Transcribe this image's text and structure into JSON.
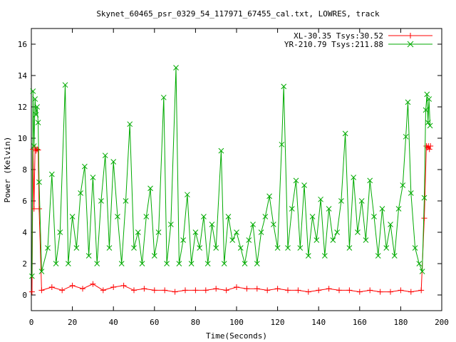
{
  "chart_data": {
    "type": "line",
    "title": "Skynet_60465_psr_0329_54_117971_67455_cal.txt, LOWRES, track",
    "xlabel": "Time(Seconds)",
    "ylabel": "Power (Kelvin)",
    "xlim": [
      0,
      200
    ],
    "ylim": [
      -1,
      17
    ],
    "x_ticks": [
      0,
      20,
      40,
      60,
      80,
      100,
      120,
      140,
      160,
      180,
      200
    ],
    "y_ticks": [
      0,
      2,
      4,
      6,
      8,
      10,
      12,
      14,
      16
    ],
    "grid": false,
    "legend_position": "top-right",
    "series": [
      {
        "name": "XL-30.35 Tsys:30.52",
        "color": "#ff0000",
        "marker": "+",
        "points": [
          [
            0.3,
            0.2
          ],
          [
            0.8,
            9.3
          ],
          [
            1.3,
            5.5
          ],
          [
            1.8,
            9.4
          ],
          [
            2.3,
            9.2
          ],
          [
            2.8,
            9.3
          ],
          [
            3.3,
            9.25
          ],
          [
            3.8,
            5.5
          ],
          [
            5,
            0.3
          ],
          [
            10,
            0.5
          ],
          [
            15,
            0.3
          ],
          [
            20,
            0.6
          ],
          [
            25,
            0.4
          ],
          [
            30,
            0.7
          ],
          [
            35,
            0.3
          ],
          [
            40,
            0.5
          ],
          [
            45,
            0.6
          ],
          [
            50,
            0.3
          ],
          [
            55,
            0.4
          ],
          [
            60,
            0.3
          ],
          [
            65,
            0.3
          ],
          [
            70,
            0.2
          ],
          [
            75,
            0.3
          ],
          [
            80,
            0.3
          ],
          [
            85,
            0.3
          ],
          [
            90,
            0.4
          ],
          [
            95,
            0.3
          ],
          [
            100,
            0.5
          ],
          [
            105,
            0.4
          ],
          [
            110,
            0.4
          ],
          [
            115,
            0.3
          ],
          [
            120,
            0.4
          ],
          [
            125,
            0.3
          ],
          [
            130,
            0.3
          ],
          [
            135,
            0.2
          ],
          [
            140,
            0.3
          ],
          [
            145,
            0.4
          ],
          [
            150,
            0.3
          ],
          [
            155,
            0.3
          ],
          [
            160,
            0.2
          ],
          [
            165,
            0.3
          ],
          [
            170,
            0.2
          ],
          [
            175,
            0.2
          ],
          [
            180,
            0.3
          ],
          [
            185,
            0.2
          ],
          [
            190,
            0.3
          ],
          [
            191.5,
            4.9
          ],
          [
            192.5,
            9.5
          ],
          [
            193.0,
            9.4
          ],
          [
            193.5,
            9.5
          ],
          [
            194.0,
            9.3
          ],
          [
            194.5,
            9.5
          ]
        ]
      },
      {
        "name": "YR-210.79 Tsys:211.88",
        "color": "#00aa00",
        "marker": "x",
        "points": [
          [
            0.3,
            1.2
          ],
          [
            0.8,
            13.0
          ],
          [
            1.3,
            9.5
          ],
          [
            1.8,
            12.5
          ],
          [
            2.3,
            11.5
          ],
          [
            2.8,
            12.0
          ],
          [
            3.3,
            11.0
          ],
          [
            3.8,
            7.2
          ],
          [
            5,
            1.5
          ],
          [
            8,
            3.0
          ],
          [
            10,
            7.7
          ],
          [
            12,
            2.0
          ],
          [
            14,
            4.0
          ],
          [
            16.5,
            13.4
          ],
          [
            18,
            2.0
          ],
          [
            20,
            5.0
          ],
          [
            22,
            3.0
          ],
          [
            24,
            6.5
          ],
          [
            26,
            8.2
          ],
          [
            28,
            2.5
          ],
          [
            30,
            7.5
          ],
          [
            32,
            2.0
          ],
          [
            34,
            6.0
          ],
          [
            36,
            8.9
          ],
          [
            38,
            3.0
          ],
          [
            40,
            8.5
          ],
          [
            42,
            5.0
          ],
          [
            44,
            2.0
          ],
          [
            46,
            6.0
          ],
          [
            48,
            10.9
          ],
          [
            50,
            3.0
          ],
          [
            52,
            4.0
          ],
          [
            54,
            2.0
          ],
          [
            56,
            5.0
          ],
          [
            58,
            6.8
          ],
          [
            60,
            2.5
          ],
          [
            62,
            4.0
          ],
          [
            64.5,
            12.6
          ],
          [
            66,
            2.0
          ],
          [
            68,
            4.5
          ],
          [
            70.5,
            14.5
          ],
          [
            72,
            2.0
          ],
          [
            74,
            3.5
          ],
          [
            76,
            6.4
          ],
          [
            78,
            2.0
          ],
          [
            80,
            4.0
          ],
          [
            82,
            3.0
          ],
          [
            84,
            5.0
          ],
          [
            86,
            2.0
          ],
          [
            88,
            4.5
          ],
          [
            90,
            3.0
          ],
          [
            92.5,
            9.2
          ],
          [
            94,
            2.0
          ],
          [
            96,
            5.0
          ],
          [
            98,
            3.5
          ],
          [
            100,
            4.0
          ],
          [
            102,
            3.0
          ],
          [
            104,
            2.0
          ],
          [
            106,
            3.5
          ],
          [
            108,
            4.5
          ],
          [
            110,
            2.0
          ],
          [
            112,
            4.0
          ],
          [
            114,
            5.0
          ],
          [
            116,
            6.3
          ],
          [
            118,
            4.5
          ],
          [
            120,
            3.0
          ],
          [
            122,
            9.6
          ],
          [
            123,
            13.3
          ],
          [
            125,
            3.0
          ],
          [
            127,
            5.5
          ],
          [
            129,
            7.3
          ],
          [
            131,
            3.0
          ],
          [
            133,
            7.0
          ],
          [
            135,
            2.5
          ],
          [
            137,
            5.0
          ],
          [
            139,
            3.5
          ],
          [
            141,
            6.1
          ],
          [
            143,
            2.5
          ],
          [
            145,
            5.5
          ],
          [
            147,
            3.5
          ],
          [
            149,
            4.0
          ],
          [
            151,
            6.0
          ],
          [
            153,
            10.3
          ],
          [
            155,
            3.0
          ],
          [
            157,
            7.5
          ],
          [
            159,
            4.0
          ],
          [
            161,
            6.0
          ],
          [
            163,
            3.5
          ],
          [
            165,
            7.3
          ],
          [
            167,
            5.0
          ],
          [
            169,
            2.5
          ],
          [
            171,
            5.5
          ],
          [
            173,
            3.0
          ],
          [
            175,
            4.5
          ],
          [
            177,
            2.5
          ],
          [
            179,
            5.5
          ],
          [
            181,
            7.0
          ],
          [
            182.5,
            10.1
          ],
          [
            183.5,
            12.3
          ],
          [
            185,
            6.5
          ],
          [
            187,
            3.0
          ],
          [
            189,
            2.0
          ],
          [
            190.5,
            1.5
          ],
          [
            191.5,
            6.2
          ],
          [
            192.2,
            11.8
          ],
          [
            192.8,
            12.8
          ],
          [
            193.3,
            11.0
          ],
          [
            193.8,
            12.5
          ],
          [
            194.3,
            10.8
          ]
        ]
      }
    ]
  }
}
